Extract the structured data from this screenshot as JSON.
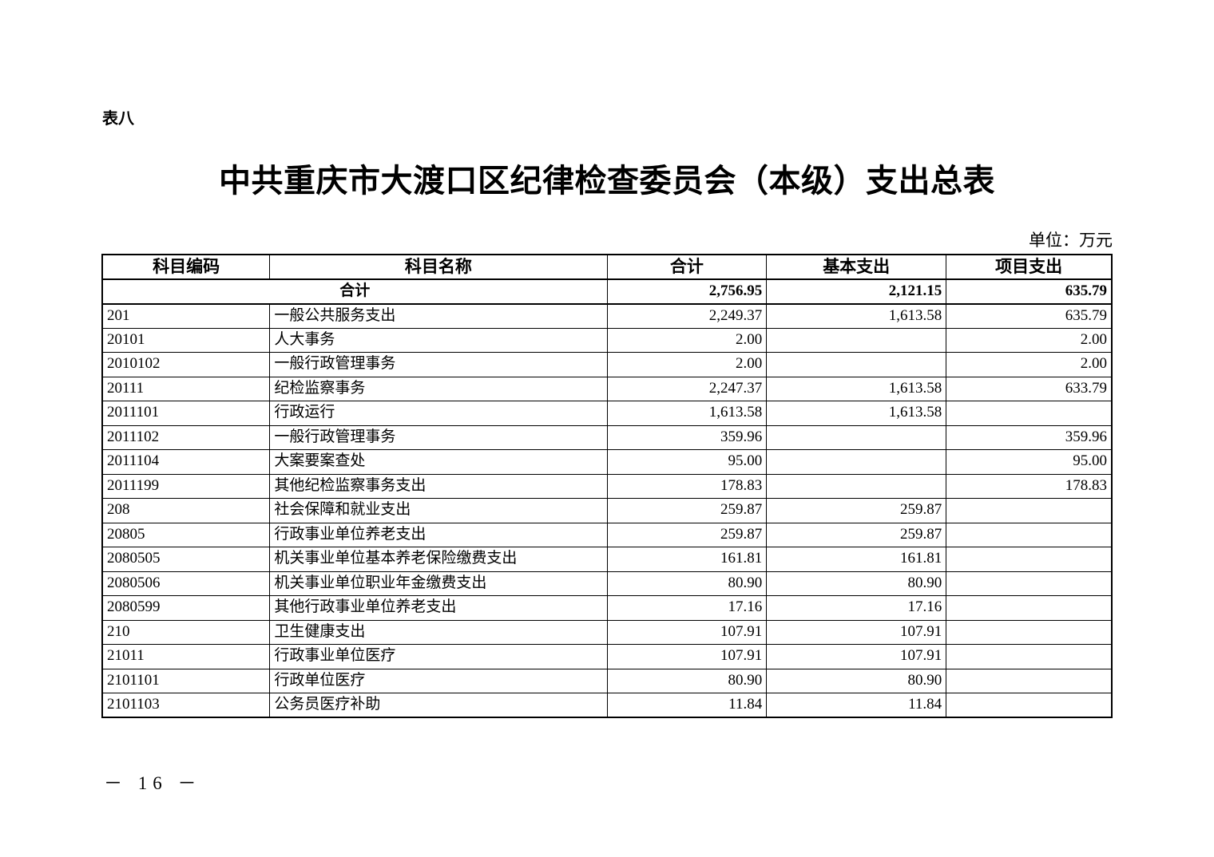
{
  "page": {
    "table_label": "表八",
    "title": "中共重庆市大渡口区纪律检查委员会（本级）支出总表",
    "unit_note": "单位：万元",
    "page_number": "－ 16 －",
    "background_color": "#ffffff",
    "text_color": "#000000"
  },
  "table": {
    "columns": [
      "科目编码",
      "科目名称",
      "合计",
      "基本支出",
      "项目支出"
    ],
    "rows": [
      {
        "code": "",
        "name": "合计",
        "total": "2,756.95",
        "basic": "2,121.15",
        "project": "635.79",
        "level": 1,
        "bold": true,
        "merge_code_name": true
      },
      {
        "code": "201",
        "name": "一般公共服务支出",
        "total": "2,249.37",
        "basic": "1,613.58",
        "project": "635.79",
        "level": 1,
        "bold": false,
        "merge_code_name": false
      },
      {
        "code": "20101",
        "name": "人大事务",
        "total": "2.00",
        "basic": "",
        "project": "2.00",
        "level": 2,
        "bold": false,
        "merge_code_name": false
      },
      {
        "code": "2010102",
        "name": "一般行政管理事务",
        "total": "2.00",
        "basic": "",
        "project": "2.00",
        "level": 3,
        "bold": false,
        "merge_code_name": false
      },
      {
        "code": "20111",
        "name": "纪检监察事务",
        "total": "2,247.37",
        "basic": "1,613.58",
        "project": "633.79",
        "level": 2,
        "bold": false,
        "merge_code_name": false
      },
      {
        "code": "2011101",
        "name": "行政运行",
        "total": "1,613.58",
        "basic": "1,613.58",
        "project": "",
        "level": 3,
        "bold": false,
        "merge_code_name": false
      },
      {
        "code": "2011102",
        "name": "一般行政管理事务",
        "total": "359.96",
        "basic": "",
        "project": "359.96",
        "level": 3,
        "bold": false,
        "merge_code_name": false
      },
      {
        "code": "2011104",
        "name": "大案要案查处",
        "total": "95.00",
        "basic": "",
        "project": "95.00",
        "level": 3,
        "bold": false,
        "merge_code_name": false
      },
      {
        "code": "2011199",
        "name": "其他纪检监察事务支出",
        "total": "178.83",
        "basic": "",
        "project": "178.83",
        "level": 3,
        "bold": false,
        "merge_code_name": false
      },
      {
        "code": "208",
        "name": "社会保障和就业支出",
        "total": "259.87",
        "basic": "259.87",
        "project": "",
        "level": 1,
        "bold": false,
        "merge_code_name": false
      },
      {
        "code": "20805",
        "name": "行政事业单位养老支出",
        "total": "259.87",
        "basic": "259.87",
        "project": "",
        "level": 2,
        "bold": false,
        "merge_code_name": false
      },
      {
        "code": "2080505",
        "name": "机关事业单位基本养老保险缴费支出",
        "total": "161.81",
        "basic": "161.81",
        "project": "",
        "level": 3,
        "bold": false,
        "merge_code_name": false
      },
      {
        "code": "2080506",
        "name": "机关事业单位职业年金缴费支出",
        "total": "80.90",
        "basic": "80.90",
        "project": "",
        "level": 3,
        "bold": false,
        "merge_code_name": false
      },
      {
        "code": "2080599",
        "name": "其他行政事业单位养老支出",
        "total": "17.16",
        "basic": "17.16",
        "project": "",
        "level": 3,
        "bold": false,
        "merge_code_name": false
      },
      {
        "code": "210",
        "name": "卫生健康支出",
        "total": "107.91",
        "basic": "107.91",
        "project": "",
        "level": 1,
        "bold": false,
        "merge_code_name": false
      },
      {
        "code": "21011",
        "name": "行政事业单位医疗",
        "total": "107.91",
        "basic": "107.91",
        "project": "",
        "level": 2,
        "bold": false,
        "merge_code_name": false
      },
      {
        "code": "2101101",
        "name": "行政单位医疗",
        "total": "80.90",
        "basic": "80.90",
        "project": "",
        "level": 3,
        "bold": false,
        "merge_code_name": false
      },
      {
        "code": "2101103",
        "name": "公务员医疗补助",
        "total": "11.84",
        "basic": "11.84",
        "project": "",
        "level": 3,
        "bold": false,
        "merge_code_name": false
      }
    ]
  }
}
